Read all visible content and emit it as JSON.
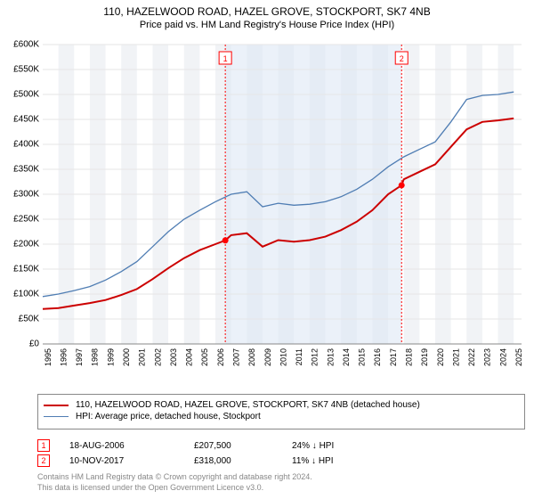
{
  "title": {
    "line1": "110, HAZELWOOD ROAD, HAZEL GROVE, STOCKPORT, SK7 4NB",
    "line2": "Price paid vs. HM Land Registry's House Price Index (HPI)"
  },
  "chart": {
    "type": "line",
    "x": {
      "min": 1995,
      "max": 2025.5,
      "tick_step": 1,
      "label_fontsize": 9
    },
    "y": {
      "min": 0,
      "max": 600000,
      "tick_step": 50000,
      "prefix": "£",
      "suffix": "K",
      "label_fontsize": 10
    },
    "background_color": "#ffffff",
    "grid_color": "#e6e6e6",
    "alt_band_color": "#f1f3f6",
    "highlight_band": {
      "from": 2006.63,
      "to": 2017.86,
      "fill": "#dbe6f4",
      "opacity": 0.55
    },
    "sale_line_color": "#ff0000",
    "sale_line_dash": "2,2",
    "series": [
      {
        "id": "property",
        "label": "110, HAZELWOOD ROAD, HAZEL GROVE, STOCKPORT, SK7 4NB (detached house)",
        "color": "#cc0000",
        "line_width": 2,
        "points": [
          [
            1995,
            70000
          ],
          [
            1996,
            72000
          ],
          [
            1997,
            77000
          ],
          [
            1998,
            82000
          ],
          [
            1999,
            88000
          ],
          [
            2000,
            98000
          ],
          [
            2001,
            110000
          ],
          [
            2002,
            130000
          ],
          [
            2003,
            152000
          ],
          [
            2004,
            172000
          ],
          [
            2005,
            188000
          ],
          [
            2006,
            200000
          ],
          [
            2006.63,
            207500
          ],
          [
            2007,
            218000
          ],
          [
            2008,
            222000
          ],
          [
            2009,
            195000
          ],
          [
            2010,
            208000
          ],
          [
            2011,
            205000
          ],
          [
            2012,
            208000
          ],
          [
            2013,
            215000
          ],
          [
            2014,
            228000
          ],
          [
            2015,
            245000
          ],
          [
            2016,
            268000
          ],
          [
            2017,
            300000
          ],
          [
            2017.86,
            318000
          ],
          [
            2018,
            330000
          ],
          [
            2019,
            345000
          ],
          [
            2020,
            360000
          ],
          [
            2021,
            395000
          ],
          [
            2022,
            430000
          ],
          [
            2023,
            445000
          ],
          [
            2024,
            448000
          ],
          [
            2025,
            452000
          ]
        ]
      },
      {
        "id": "hpi",
        "label": "HPI: Average price, detached house, Stockport",
        "color": "#4f7db3",
        "line_width": 1.3,
        "points": [
          [
            1995,
            95000
          ],
          [
            1996,
            100000
          ],
          [
            1997,
            107000
          ],
          [
            1998,
            115000
          ],
          [
            1999,
            128000
          ],
          [
            2000,
            145000
          ],
          [
            2001,
            165000
          ],
          [
            2002,
            195000
          ],
          [
            2003,
            225000
          ],
          [
            2004,
            250000
          ],
          [
            2005,
            268000
          ],
          [
            2006,
            285000
          ],
          [
            2007,
            300000
          ],
          [
            2008,
            305000
          ],
          [
            2009,
            275000
          ],
          [
            2010,
            282000
          ],
          [
            2011,
            278000
          ],
          [
            2012,
            280000
          ],
          [
            2013,
            285000
          ],
          [
            2014,
            295000
          ],
          [
            2015,
            310000
          ],
          [
            2016,
            330000
          ],
          [
            2017,
            355000
          ],
          [
            2018,
            375000
          ],
          [
            2019,
            390000
          ],
          [
            2020,
            405000
          ],
          [
            2021,
            445000
          ],
          [
            2022,
            490000
          ],
          [
            2023,
            498000
          ],
          [
            2024,
            500000
          ],
          [
            2025,
            505000
          ]
        ]
      }
    ],
    "sale_markers": [
      {
        "n": "1",
        "x": 2006.63,
        "y": 207500,
        "color": "#ff0000"
      },
      {
        "n": "2",
        "x": 2017.86,
        "y": 318000,
        "color": "#ff0000"
      }
    ]
  },
  "sales": [
    {
      "n": "1",
      "date": "18-AUG-2006",
      "price": "£207,500",
      "diff": "24% ↓ HPI",
      "border": "#ff0000"
    },
    {
      "n": "2",
      "date": "10-NOV-2017",
      "price": "£318,000",
      "diff": "11% ↓ HPI",
      "border": "#ff0000"
    }
  ],
  "footer": {
    "line1": "Contains HM Land Registry data © Crown copyright and database right 2024.",
    "line2": "This data is licensed under the Open Government Licence v3.0."
  }
}
